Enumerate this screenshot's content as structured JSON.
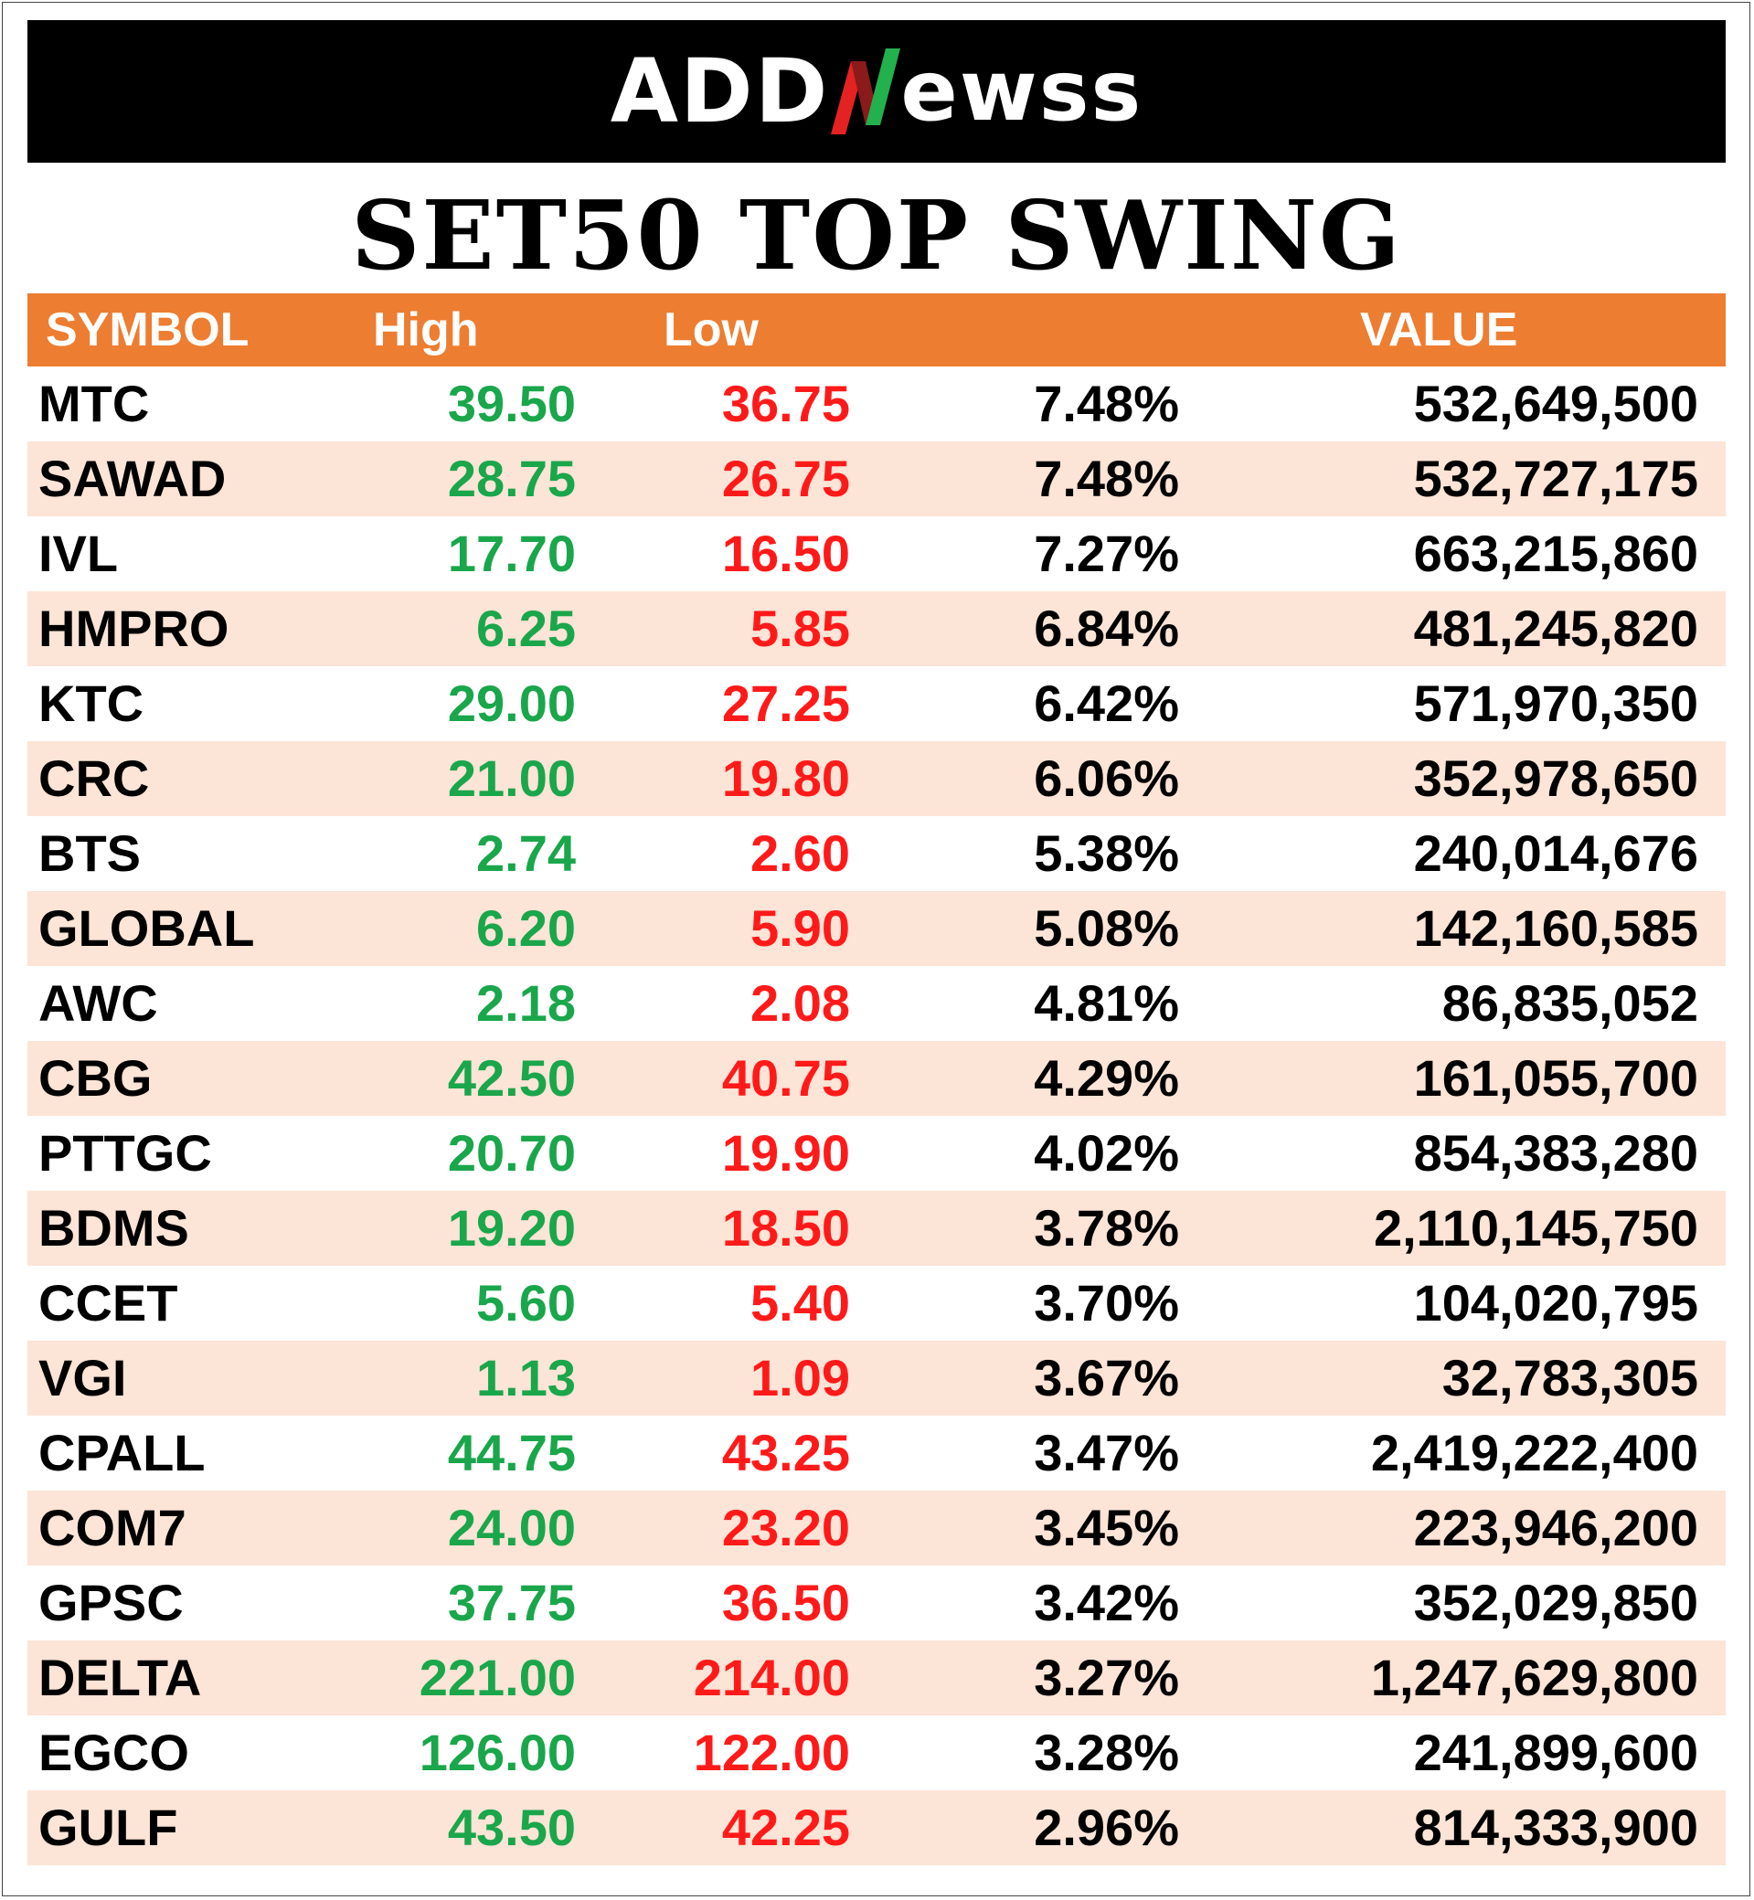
{
  "logo": {
    "text_left": "ADD",
    "text_n": "N",
    "text_right": "ewss",
    "colors": {
      "text": "#ffffff",
      "n_green": "#22b14c",
      "n_red": "#e52222"
    }
  },
  "title": "SET50 TOP SWING",
  "table": {
    "headers": {
      "symbol": "SYMBOL",
      "high": "High",
      "low": "Low",
      "pct": "",
      "value": "VALUE"
    },
    "rows": [
      {
        "symbol": "MTC",
        "high": "39.50",
        "low": "36.75",
        "pct": "7.48%",
        "value": "532,649,500"
      },
      {
        "symbol": "SAWAD",
        "high": "28.75",
        "low": "26.75",
        "pct": "7.48%",
        "value": "532,727,175"
      },
      {
        "symbol": "IVL",
        "high": "17.70",
        "low": "16.50",
        "pct": "7.27%",
        "value": "663,215,860"
      },
      {
        "symbol": "HMPRO",
        "high": "6.25",
        "low": "5.85",
        "pct": "6.84%",
        "value": "481,245,820"
      },
      {
        "symbol": "KTC",
        "high": "29.00",
        "low": "27.25",
        "pct": "6.42%",
        "value": "571,970,350"
      },
      {
        "symbol": "CRC",
        "high": "21.00",
        "low": "19.80",
        "pct": "6.06%",
        "value": "352,978,650"
      },
      {
        "symbol": "BTS",
        "high": "2.74",
        "low": "2.60",
        "pct": "5.38%",
        "value": "240,014,676"
      },
      {
        "symbol": "GLOBAL",
        "high": "6.20",
        "low": "5.90",
        "pct": "5.08%",
        "value": "142,160,585"
      },
      {
        "symbol": "AWC",
        "high": "2.18",
        "low": "2.08",
        "pct": "4.81%",
        "value": "86,835,052"
      },
      {
        "symbol": "CBG",
        "high": "42.50",
        "low": "40.75",
        "pct": "4.29%",
        "value": "161,055,700"
      },
      {
        "symbol": "PTTGC",
        "high": "20.70",
        "low": "19.90",
        "pct": "4.02%",
        "value": "854,383,280"
      },
      {
        "symbol": "BDMS",
        "high": "19.20",
        "low": "18.50",
        "pct": "3.78%",
        "value": "2,110,145,750"
      },
      {
        "symbol": "CCET",
        "high": "5.60",
        "low": "5.40",
        "pct": "3.70%",
        "value": "104,020,795"
      },
      {
        "symbol": "VGI",
        "high": "1.13",
        "low": "1.09",
        "pct": "3.67%",
        "value": "32,783,305"
      },
      {
        "symbol": "CPALL",
        "high": "44.75",
        "low": "43.25",
        "pct": "3.47%",
        "value": "2,419,222,400"
      },
      {
        "symbol": "COM7",
        "high": "24.00",
        "low": "23.20",
        "pct": "3.45%",
        "value": "223,946,200"
      },
      {
        "symbol": "GPSC",
        "high": "37.75",
        "low": "36.50",
        "pct": "3.42%",
        "value": "352,029,850"
      },
      {
        "symbol": "DELTA",
        "high": "221.00",
        "low": "214.00",
        "pct": "3.27%",
        "value": "1,247,629,800"
      },
      {
        "symbol": "EGCO",
        "high": "126.00",
        "low": "122.00",
        "pct": "3.28%",
        "value": "241,899,600"
      },
      {
        "symbol": "GULF",
        "high": "43.50",
        "low": "42.25",
        "pct": "2.96%",
        "value": "814,333,900"
      }
    ]
  },
  "colors": {
    "header_bg": "#ed7d31",
    "alt_row_bg": "#fce4d6",
    "high_text": "#1aa64b",
    "low_text": "#ff1a1a"
  }
}
